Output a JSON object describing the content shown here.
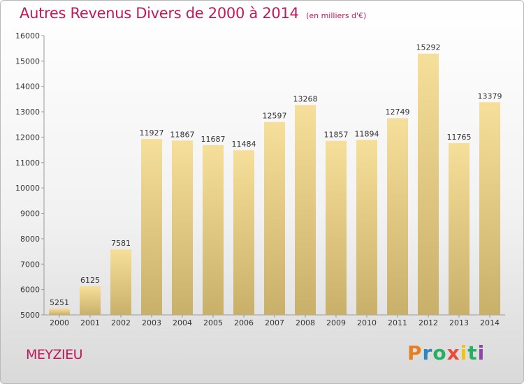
{
  "header": {
    "title": "Autres Revenus Divers de 2000 à 2014",
    "subtitle": "(en milliers d'€)"
  },
  "footer": {
    "city": "MEYZIEU",
    "logo": "Proxiti"
  },
  "colors": {
    "title": "#c2185b",
    "bar_light": "#f6df9a",
    "bar_dark": "#c9b06a",
    "logo_letters": [
      "#e67e22",
      "#2e86c1",
      "#27ae60",
      "#e74c3c",
      "#f1c40f",
      "#27ae60",
      "#8e44ad"
    ]
  },
  "chart_data": {
    "type": "bar",
    "title": "Autres Revenus Divers de 2000 à 2014",
    "subtitle": "(en milliers d'€)",
    "categories": [
      "2000",
      "2001",
      "2002",
      "2003",
      "2004",
      "2005",
      "2006",
      "2007",
      "2008",
      "2009",
      "2010",
      "2011",
      "2012",
      "2013",
      "2014"
    ],
    "values": [
      5251,
      6125,
      7581,
      11927,
      11867,
      11687,
      11484,
      12597,
      13268,
      11857,
      11894,
      12749,
      15292,
      11765,
      13379
    ],
    "ylim": [
      5000,
      16000
    ],
    "yticks": [
      5000,
      6000,
      7000,
      8000,
      9000,
      10000,
      11000,
      12000,
      13000,
      14000,
      15000,
      16000
    ],
    "xlabel": "",
    "ylabel": "",
    "grid": false,
    "legend": "none"
  }
}
